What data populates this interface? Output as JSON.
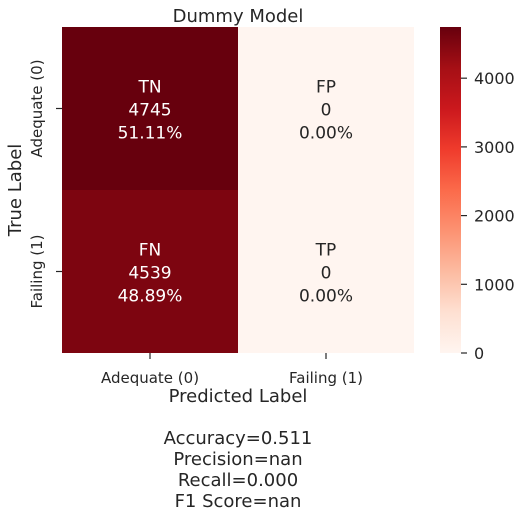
{
  "chart_data": {
    "type": "heatmap",
    "title": "Dummy Model",
    "xlabel": "Predicted Label",
    "ylabel": "True Label",
    "x_categories": [
      "Adequate (0)",
      "Failing (1)"
    ],
    "y_categories": [
      "Adequate (0)",
      "Failing (1)"
    ],
    "cells": [
      [
        {
          "label": "TN",
          "count": 4745,
          "count_text": "4745",
          "percent": "51.11%"
        },
        {
          "label": "FP",
          "count": 0,
          "count_text": "0",
          "percent": "0.00%"
        }
      ],
      [
        {
          "label": "FN",
          "count": 4539,
          "count_text": "4539",
          "percent": "48.89%"
        },
        {
          "label": "TP",
          "count": 0,
          "count_text": "0",
          "percent": "0.00%"
        }
      ]
    ],
    "colorbar": {
      "min": 0,
      "max": 4745,
      "ticks": [
        0,
        1000,
        2000,
        3000,
        4000
      ],
      "tick_labels": [
        "0",
        "1000",
        "2000",
        "3000",
        "4000"
      ],
      "colormap": "Reds",
      "color_low": "#fff5f0",
      "color_high": "#67000d"
    },
    "stats": [
      "Accuracy=0.511",
      "Precision=nan",
      "Recall=0.000",
      "F1 Score=nan"
    ]
  }
}
